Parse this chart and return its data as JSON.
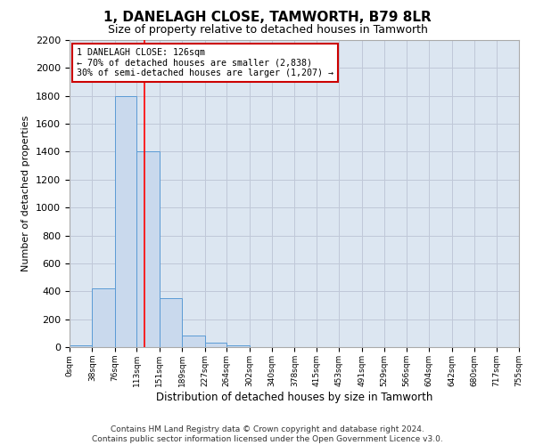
{
  "title": "1, DANELAGH CLOSE, TAMWORTH, B79 8LR",
  "subtitle": "Size of property relative to detached houses in Tamworth",
  "xlabel": "Distribution of detached houses by size in Tamworth",
  "ylabel": "Number of detached properties",
  "footer_line1": "Contains HM Land Registry data © Crown copyright and database right 2024.",
  "footer_line2": "Contains public sector information licensed under the Open Government Licence v3.0.",
  "bin_edges": [
    0,
    38,
    76,
    113,
    151,
    189,
    227,
    264,
    302,
    340,
    378,
    415,
    453,
    491,
    529,
    566,
    604,
    642,
    680,
    717,
    755
  ],
  "bar_heights": [
    15,
    420,
    1800,
    1400,
    350,
    80,
    30,
    15,
    0,
    0,
    0,
    0,
    0,
    0,
    0,
    0,
    0,
    0,
    0,
    0
  ],
  "bar_color": "#c9d9ed",
  "bar_edge_color": "#5b9bd5",
  "grid_color": "#c0c8d8",
  "background_color": "#dce6f1",
  "red_line_x": 126,
  "annotation_text": "1 DANELAGH CLOSE: 126sqm\n← 70% of detached houses are smaller (2,838)\n30% of semi-detached houses are larger (1,207) →",
  "annotation_box_color": "#ffffff",
  "annotation_box_edge_color": "#cc0000",
  "ylim": [
    0,
    2200
  ],
  "yticks": [
    0,
    200,
    400,
    600,
    800,
    1000,
    1200,
    1400,
    1600,
    1800,
    2000,
    2200
  ]
}
